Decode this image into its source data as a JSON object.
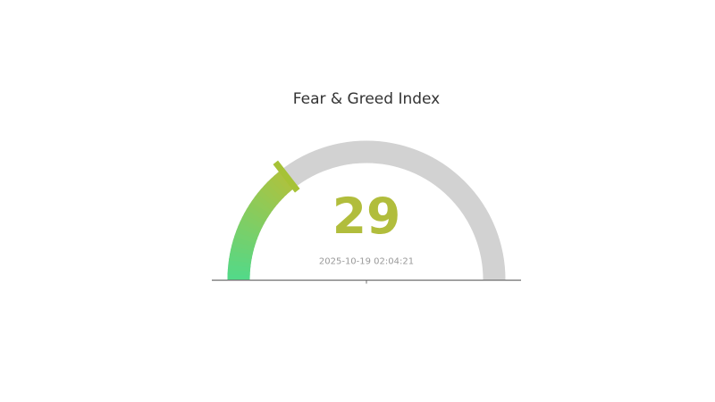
{
  "chart_data": {
    "type": "gauge",
    "title": "Fear & Greed Index",
    "value": 29,
    "value_label": "29",
    "min": 0,
    "max": 100,
    "timestamp": "2025-10-19 02:04:21",
    "layout": {
      "start_angle_deg": 180,
      "end_angle_deg": 0,
      "legend": false,
      "grid": false,
      "ticks": "single center tick below baseline"
    },
    "colors": {
      "background": "#ffffff",
      "title": "#333333",
      "track": "#d2d2d2",
      "gradient_start": "#52d989",
      "gradient_end": "#aec23e",
      "pointer": "#a6c236",
      "value": "#b1bd3c",
      "timestamp": "#999999",
      "baseline": "#707070"
    }
  }
}
